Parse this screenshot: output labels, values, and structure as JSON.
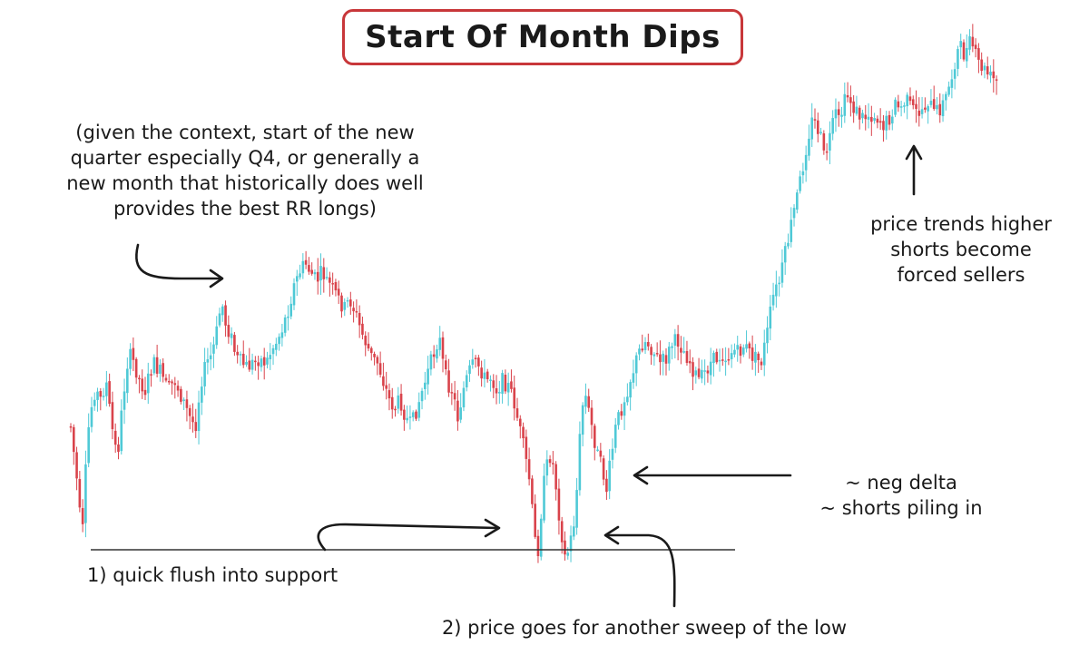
{
  "chart_data": {
    "type": "candlestick",
    "title": "Start Of Month Dips",
    "xlabel": "",
    "ylabel": "",
    "grid": false,
    "colors": {
      "up": "#4fc9d6",
      "down": "#d9434b",
      "support": "#333333",
      "title_border": "#c8373a"
    },
    "support_level": 603,
    "y_axis_note": "inverted pixel-scale proxy (larger = lower on chart)",
    "price_path": [
      [
        0,
        470
      ],
      [
        4,
        505
      ],
      [
        8,
        545
      ],
      [
        12,
        600
      ],
      [
        16,
        520
      ],
      [
        20,
        460
      ],
      [
        26,
        430
      ],
      [
        32,
        440
      ],
      [
        38,
        420
      ],
      [
        44,
        470
      ],
      [
        50,
        505
      ],
      [
        56,
        440
      ],
      [
        62,
        390
      ],
      [
        68,
        400
      ],
      [
        74,
        420
      ],
      [
        80,
        430
      ],
      [
        88,
        400
      ],
      [
        96,
        410
      ],
      [
        104,
        430
      ],
      [
        112,
        420
      ],
      [
        120,
        440
      ],
      [
        128,
        460
      ],
      [
        134,
        470
      ],
      [
        140,
        420
      ],
      [
        146,
        400
      ],
      [
        152,
        390
      ],
      [
        158,
        360
      ],
      [
        162,
        330
      ],
      [
        166,
        355
      ],
      [
        172,
        370
      ],
      [
        178,
        395
      ],
      [
        184,
        400
      ],
      [
        190,
        405
      ],
      [
        196,
        400
      ],
      [
        202,
        395
      ],
      [
        210,
        400
      ],
      [
        216,
        385
      ],
      [
        222,
        375
      ],
      [
        228,
        360
      ],
      [
        234,
        340
      ],
      [
        240,
        315
      ],
      [
        246,
        300
      ],
      [
        252,
        290
      ],
      [
        258,
        300
      ],
      [
        264,
        310
      ],
      [
        270,
        300
      ],
      [
        276,
        310
      ],
      [
        282,
        320
      ],
      [
        288,
        330
      ],
      [
        294,
        340
      ],
      [
        300,
        330
      ],
      [
        306,
        345
      ],
      [
        312,
        365
      ],
      [
        318,
        380
      ],
      [
        324,
        395
      ],
      [
        330,
        400
      ],
      [
        336,
        420
      ],
      [
        342,
        440
      ],
      [
        348,
        450
      ],
      [
        354,
        440
      ],
      [
        360,
        460
      ],
      [
        366,
        470
      ],
      [
        372,
        450
      ],
      [
        378,
        430
      ],
      [
        384,
        410
      ],
      [
        390,
        390
      ],
      [
        396,
        370
      ],
      [
        400,
        400
      ],
      [
        404,
        420
      ],
      [
        410,
        430
      ],
      [
        416,
        460
      ],
      [
        422,
        430
      ],
      [
        428,
        410
      ],
      [
        434,
        400
      ],
      [
        440,
        405
      ],
      [
        446,
        420
      ],
      [
        452,
        415
      ],
      [
        458,
        430
      ],
      [
        464,
        420
      ],
      [
        470,
        425
      ],
      [
        476,
        440
      ],
      [
        482,
        470
      ],
      [
        488,
        500
      ],
      [
        494,
        535
      ],
      [
        498,
        590
      ],
      [
        502,
        610
      ],
      [
        506,
        560
      ],
      [
        510,
        520
      ],
      [
        516,
        500
      ],
      [
        520,
        520
      ],
      [
        524,
        560
      ],
      [
        528,
        590
      ],
      [
        532,
        620
      ],
      [
        536,
        600
      ],
      [
        540,
        585
      ],
      [
        544,
        540
      ],
      [
        548,
        470
      ],
      [
        552,
        430
      ],
      [
        556,
        450
      ],
      [
        560,
        470
      ],
      [
        566,
        500
      ],
      [
        572,
        520
      ],
      [
        576,
        540
      ],
      [
        580,
        510
      ],
      [
        586,
        470
      ],
      [
        592,
        450
      ],
      [
        598,
        430
      ],
      [
        604,
        410
      ],
      [
        610,
        390
      ],
      [
        616,
        375
      ],
      [
        622,
        380
      ],
      [
        628,
        390
      ],
      [
        634,
        400
      ],
      [
        640,
        395
      ],
      [
        646,
        380
      ],
      [
        652,
        375
      ],
      [
        658,
        385
      ],
      [
        664,
        395
      ],
      [
        670,
        410
      ],
      [
        676,
        420
      ],
      [
        682,
        410
      ],
      [
        688,
        400
      ],
      [
        694,
        395
      ],
      [
        700,
        390
      ],
      [
        706,
        395
      ],
      [
        712,
        385
      ],
      [
        718,
        390
      ],
      [
        724,
        380
      ],
      [
        730,
        390
      ],
      [
        736,
        395
      ],
      [
        742,
        400
      ],
      [
        746,
        380
      ],
      [
        750,
        360
      ],
      [
        754,
        330
      ],
      [
        758,
        320
      ],
      [
        762,
        310
      ],
      [
        766,
        290
      ],
      [
        770,
        270
      ],
      [
        774,
        250
      ],
      [
        778,
        230
      ],
      [
        782,
        210
      ],
      [
        786,
        190
      ],
      [
        790,
        165
      ],
      [
        794,
        145
      ],
      [
        798,
        130
      ],
      [
        802,
        140
      ],
      [
        806,
        150
      ],
      [
        810,
        175
      ],
      [
        814,
        160
      ],
      [
        818,
        145
      ],
      [
        822,
        125
      ],
      [
        826,
        135
      ],
      [
        830,
        120
      ],
      [
        834,
        105
      ],
      [
        838,
        110
      ],
      [
        842,
        120
      ],
      [
        846,
        125
      ],
      [
        850,
        130
      ],
      [
        856,
        128
      ],
      [
        862,
        126
      ],
      [
        868,
        130
      ],
      [
        874,
        138
      ],
      [
        880,
        130
      ],
      [
        886,
        115
      ],
      [
        892,
        120
      ],
      [
        898,
        110
      ],
      [
        904,
        120
      ],
      [
        910,
        125
      ],
      [
        916,
        120
      ],
      [
        922,
        110
      ],
      [
        928,
        125
      ],
      [
        934,
        120
      ],
      [
        940,
        110
      ],
      [
        946,
        90
      ],
      [
        952,
        60
      ],
      [
        956,
        52
      ],
      [
        960,
        60
      ],
      [
        964,
        55
      ],
      [
        968,
        45
      ],
      [
        972,
        60
      ],
      [
        976,
        70
      ],
      [
        980,
        75
      ],
      [
        984,
        80
      ],
      [
        988,
        85
      ],
      [
        992,
        88
      ],
      [
        996,
        92
      ]
    ],
    "annotations": {
      "context": [
        "(given the context, start of the new",
        "quarter especially Q4, or generally a",
        "new month that historically does well",
        "provides the best RR longs)"
      ],
      "trend": [
        "price trends higher",
        "shorts become",
        "forced sellers"
      ],
      "delta": [
        "~ neg delta",
        "~ shorts piling in"
      ],
      "flush": "1) quick flush into support",
      "sweep": "2) price goes for another sweep of the low"
    }
  }
}
